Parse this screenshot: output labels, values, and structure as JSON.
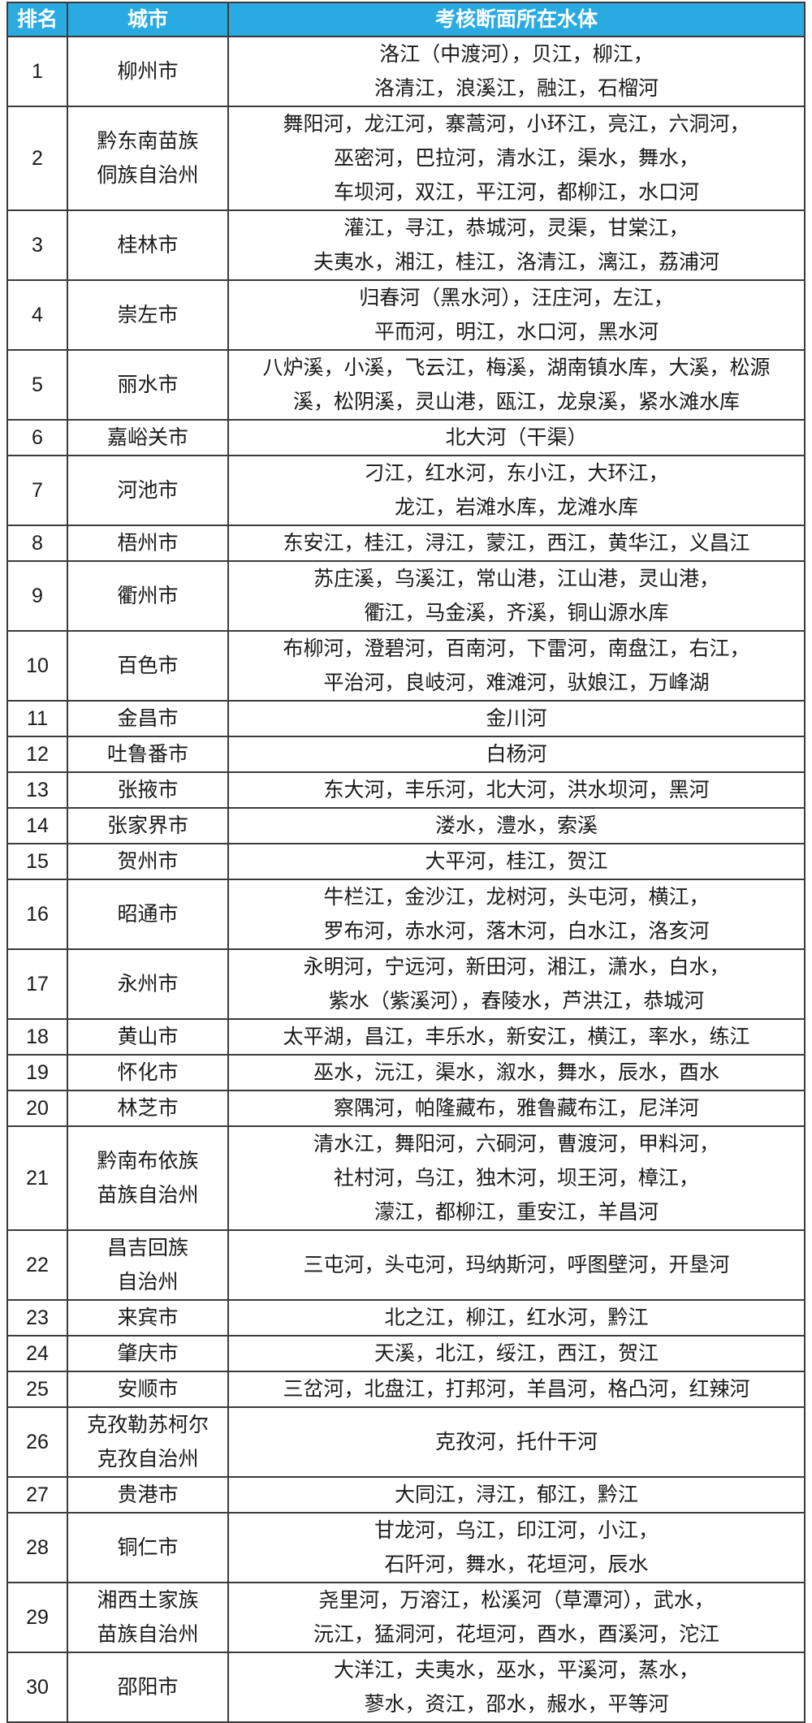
{
  "colors": {
    "header_bg": "#29abe2",
    "header_text": "#ffffff",
    "border": "#3b3b3b",
    "body_text": "#1a1a1a"
  },
  "chart_data": {
    "type": "table",
    "columns": [
      "排名",
      "城市",
      "考核断面所在水体"
    ],
    "rows": [
      {
        "rank": "1",
        "city": "柳州市",
        "water": "洛江（中渡河），贝江，柳江，\n洛清江，浪溪江，融江，石榴河"
      },
      {
        "rank": "2",
        "city": "黔东南苗族\n侗族自治州",
        "water": "舞阳河，龙江河，寨蒿河，小环江，亮江，六洞河，\n巫密河，巴拉河，清水江，渠水，舞水，\n车坝河，双江，平江河，都柳江，水口河"
      },
      {
        "rank": "3",
        "city": "桂林市",
        "water": "灌江，寻江，恭城河，灵渠，甘棠江，\n夫夷水，湘江，桂江，洛清江，漓江，荔浦河"
      },
      {
        "rank": "4",
        "city": "崇左市",
        "water": "归春河（黑水河），汪庄河，左江，\n平而河，明江，水口河，黑水河"
      },
      {
        "rank": "5",
        "city": "丽水市",
        "water": "八炉溪，小溪，飞云江，梅溪，湖南镇水库，大溪，松源\n溪，松阴溪，灵山港，瓯江，龙泉溪，紧水滩水库"
      },
      {
        "rank": "6",
        "city": "嘉峪关市",
        "water": "北大河（干渠）"
      },
      {
        "rank": "7",
        "city": "河池市",
        "water": "刁江，红水河，东小江，大环江，\n龙江，岩滩水库，龙滩水库"
      },
      {
        "rank": "8",
        "city": "梧州市",
        "water": "东安江，桂江，浔江，蒙江，西江，黄华江，义昌江"
      },
      {
        "rank": "9",
        "city": "衢州市",
        "water": "苏庄溪，乌溪江，常山港，江山港，灵山港，\n衢江，马金溪，齐溪，铜山源水库"
      },
      {
        "rank": "10",
        "city": "百色市",
        "water": "布柳河，澄碧河，百南河，下雷河，南盘江，右江，\n平治河，良岐河，难滩河，驮娘江，万峰湖"
      },
      {
        "rank": "11",
        "city": "金昌市",
        "water": "金川河"
      },
      {
        "rank": "12",
        "city": "吐鲁番市",
        "water": "白杨河"
      },
      {
        "rank": "13",
        "city": "张掖市",
        "water": "东大河，丰乐河，北大河，洪水坝河，黑河"
      },
      {
        "rank": "14",
        "city": "张家界市",
        "water": "溇水，澧水，索溪"
      },
      {
        "rank": "15",
        "city": "贺州市",
        "water": "大平河，桂江，贺江"
      },
      {
        "rank": "16",
        "city": "昭通市",
        "water": "牛栏江，金沙江，龙树河，头屯河，横江，\n罗布河，赤水河，落木河，白水江，洛亥河"
      },
      {
        "rank": "17",
        "city": "永州市",
        "water": "永明河，宁远河，新田河，湘江，潇水，白水，\n紫水（紫溪河），舂陵水，芦洪江，恭城河"
      },
      {
        "rank": "18",
        "city": "黄山市",
        "water": "太平湖，昌江，丰乐水，新安江，横江，率水，练江"
      },
      {
        "rank": "19",
        "city": "怀化市",
        "water": "巫水，沅江，渠水，溆水，舞水，辰水，酉水"
      },
      {
        "rank": "20",
        "city": "林芝市",
        "water": "察隅河，帕隆藏布，雅鲁藏布江，尼洋河"
      },
      {
        "rank": "21",
        "city": "黔南布依族\n苗族自治州",
        "water": "清水江，舞阳河，六硐河，曹渡河，甲料河，\n社村河，乌江，独木河，坝王河，樟江，\n濛江，都柳江，重安江，羊昌河"
      },
      {
        "rank": "22",
        "city": "昌吉回族\n自治州",
        "water": "三屯河，头屯河，玛纳斯河，呼图壁河，开垦河"
      },
      {
        "rank": "23",
        "city": "来宾市",
        "water": "北之江，柳江，红水河，黔江"
      },
      {
        "rank": "24",
        "city": "肇庆市",
        "water": "天溪，北江，绥江，西江，贺江"
      },
      {
        "rank": "25",
        "city": "安顺市",
        "water": "三岔河，北盘江，打邦河，羊昌河，格凸河，红辣河"
      },
      {
        "rank": "26",
        "city": "克孜勒苏柯尔\n克孜自治州",
        "water": "克孜河，托什干河"
      },
      {
        "rank": "27",
        "city": "贵港市",
        "water": "大同江，浔江，郁江，黔江"
      },
      {
        "rank": "28",
        "city": "铜仁市",
        "water": "甘龙河，乌江，印江河，小江，\n石阡河，舞水，花垣河，辰水"
      },
      {
        "rank": "29",
        "city": "湘西土家族\n苗族自治州",
        "water": "尧里河，万溶江，松溪河（草潭河），武水，\n沅江，猛洞河，花垣河，酉水，酉溪河，沱江"
      },
      {
        "rank": "30",
        "city": "邵阳市",
        "water": "大洋江，夫夷水，巫水，平溪河，蒸水，\n蓼水，资江，邵水，赧水，平等河"
      }
    ]
  }
}
